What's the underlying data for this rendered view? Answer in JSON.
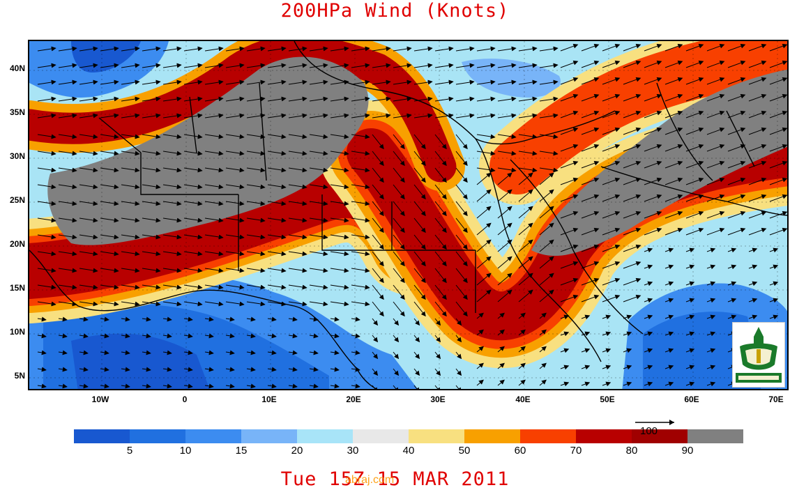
{
  "title": "200HPa Wind (Knots)",
  "footer": "Tue 15Z 15 MAR 2011",
  "watermark": "abraj.com",
  "lat_ticks": [
    "40N",
    "35N",
    "30N",
    "25N",
    "20N",
    "15N",
    "10N",
    "5N"
  ],
  "lon_ticks": [
    "10W",
    "0",
    "10E",
    "20E",
    "30E",
    "40E",
    "50E",
    "60E",
    "70E"
  ],
  "colorbar": {
    "colors": [
      "#1858d0",
      "#2070e0",
      "#3c8cf0",
      "#78b4f8",
      "#a8e4f8",
      "#e8e8e8",
      "#f8e080",
      "#f8a000",
      "#f84000",
      "#b80000",
      "#a00000",
      "#808080"
    ],
    "labels": [
      "5",
      "10",
      "15",
      "20",
      "30",
      "40",
      "50",
      "60",
      "70",
      "80",
      "90"
    ]
  },
  "reference_vector": {
    "label": "100"
  },
  "logo": {
    "name": "king-abdulaziz-university-logo"
  }
}
